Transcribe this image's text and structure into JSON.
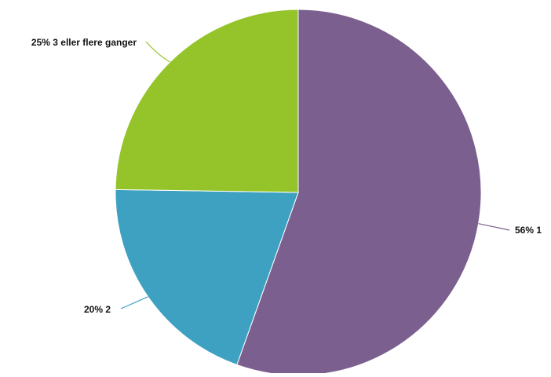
{
  "chart_data": {
    "type": "pie",
    "title": "",
    "slices": [
      {
        "label": "56% 1",
        "value": 56,
        "color": "#7b5f8e"
      },
      {
        "label": "20% 2",
        "value": 20,
        "color": "#3ea1c1"
      },
      {
        "label": "25% 3 eller flere ganger",
        "value": 25,
        "color": "#95c42a"
      }
    ],
    "start_angle_deg": 0,
    "direction": "clockwise",
    "legend": "none"
  }
}
